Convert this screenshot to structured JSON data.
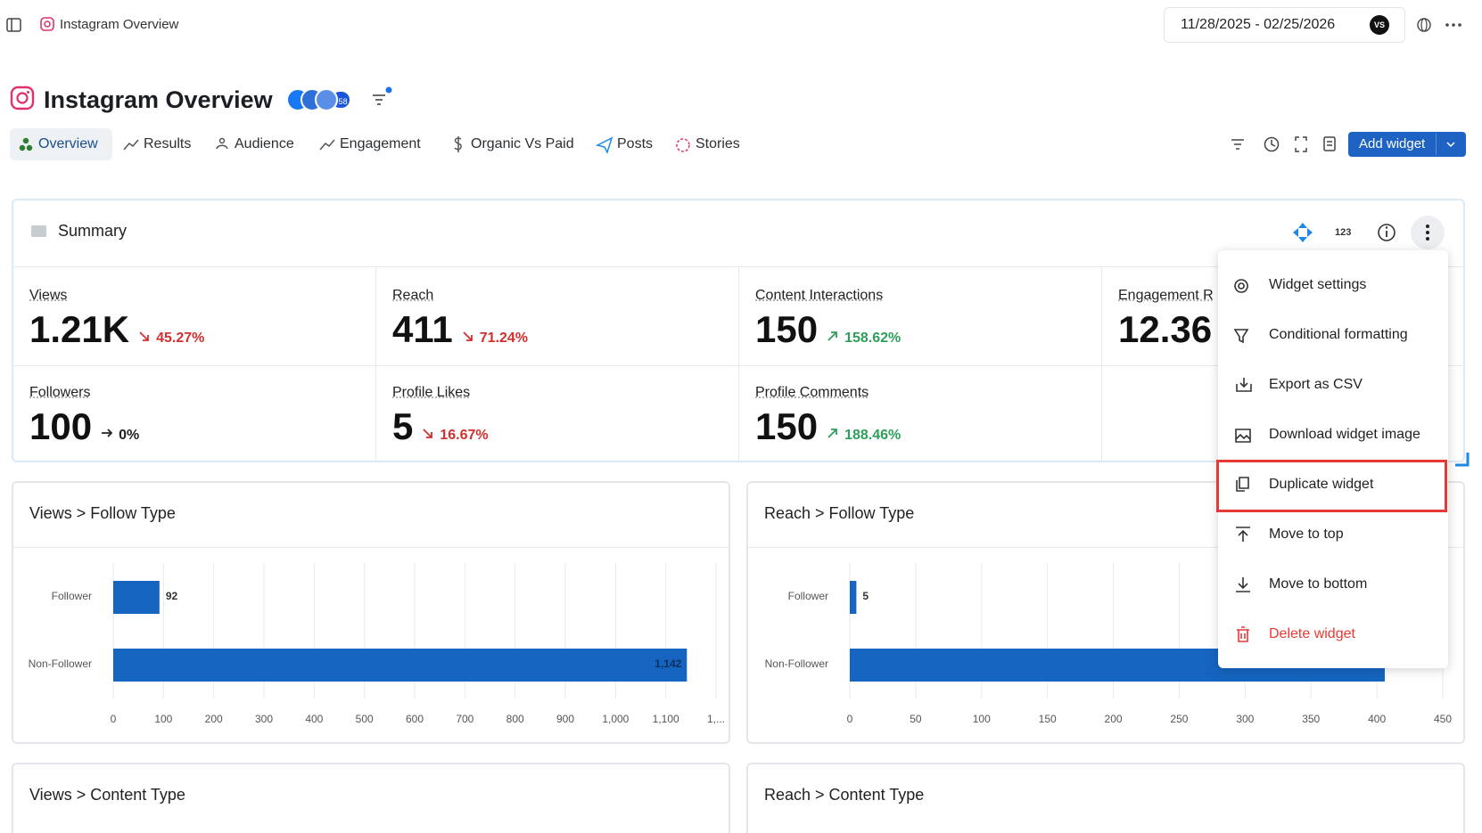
{
  "top_bar": {
    "tab_title": "Instagram Overview",
    "date_range": "11/28/2025 - 02/25/2026",
    "avatar": "VS"
  },
  "header": {
    "title": "Instagram Overview",
    "badge": "+58"
  },
  "tabs": [
    "Overview",
    "Results",
    "Audience",
    "Engagement",
    "Organic Vs Paid",
    "Posts",
    "Stories"
  ],
  "toolbar": {
    "add_button": "Add widget"
  },
  "summary": {
    "title": "Summary",
    "badge": "123",
    "metrics": [
      {
        "label": "Views",
        "value": "1.21K",
        "change": "45.27%",
        "direction": "down"
      },
      {
        "label": "Reach",
        "value": "411",
        "change": "71.24%",
        "direction": "down"
      },
      {
        "label": "Content Interactions",
        "value": "150",
        "change": "158.62%",
        "direction": "up"
      },
      {
        "label": "Engagement R",
        "value": "12.36"
      },
      {
        "label": "Followers",
        "value": "100",
        "change": "0%",
        "direction": "flat"
      },
      {
        "label": "Profile Likes",
        "value": "5",
        "change": "16.67%",
        "direction": "down"
      },
      {
        "label": "Profile Comments",
        "value": "150",
        "change": "188.46%",
        "direction": "up"
      }
    ]
  },
  "menu": {
    "items": [
      "Widget settings",
      "Conditional formatting",
      "Export as CSV",
      "Download widget image",
      "Duplicate widget",
      "Move to top",
      "Move to bottom",
      "Delete widget"
    ]
  },
  "chart_data": [
    {
      "type": "bar",
      "orientation": "horizontal",
      "title": "Views > Follow Type",
      "categories": [
        "Follower",
        "Non-Follower"
      ],
      "values": [
        92,
        1142
      ],
      "value_labels": [
        "92",
        "1,142"
      ],
      "color": "#1565c0",
      "xlim": [
        0,
        1200
      ],
      "xticks": [
        0,
        100,
        200,
        300,
        400,
        500,
        600,
        700,
        800,
        900,
        {
          "value": 1000,
          "label": "1,000"
        },
        {
          "value": 1100,
          "label": "1,100"
        },
        {
          "value": 1200,
          "label": "1,..."
        }
      ],
      "grid": true
    },
    {
      "type": "bar",
      "orientation": "horizontal",
      "title": "Reach > Follow Type",
      "categories": [
        "Follower",
        "Non-Follower"
      ],
      "values": [
        5,
        406
      ],
      "color": "#1565c0",
      "xlim": [
        0,
        450
      ],
      "xticks": [
        0,
        50,
        100,
        150,
        200,
        250,
        300,
        350,
        400,
        450
      ],
      "grid": true
    }
  ],
  "widgets": [
    "Views > Content Type",
    "Reach > Content Type"
  ]
}
